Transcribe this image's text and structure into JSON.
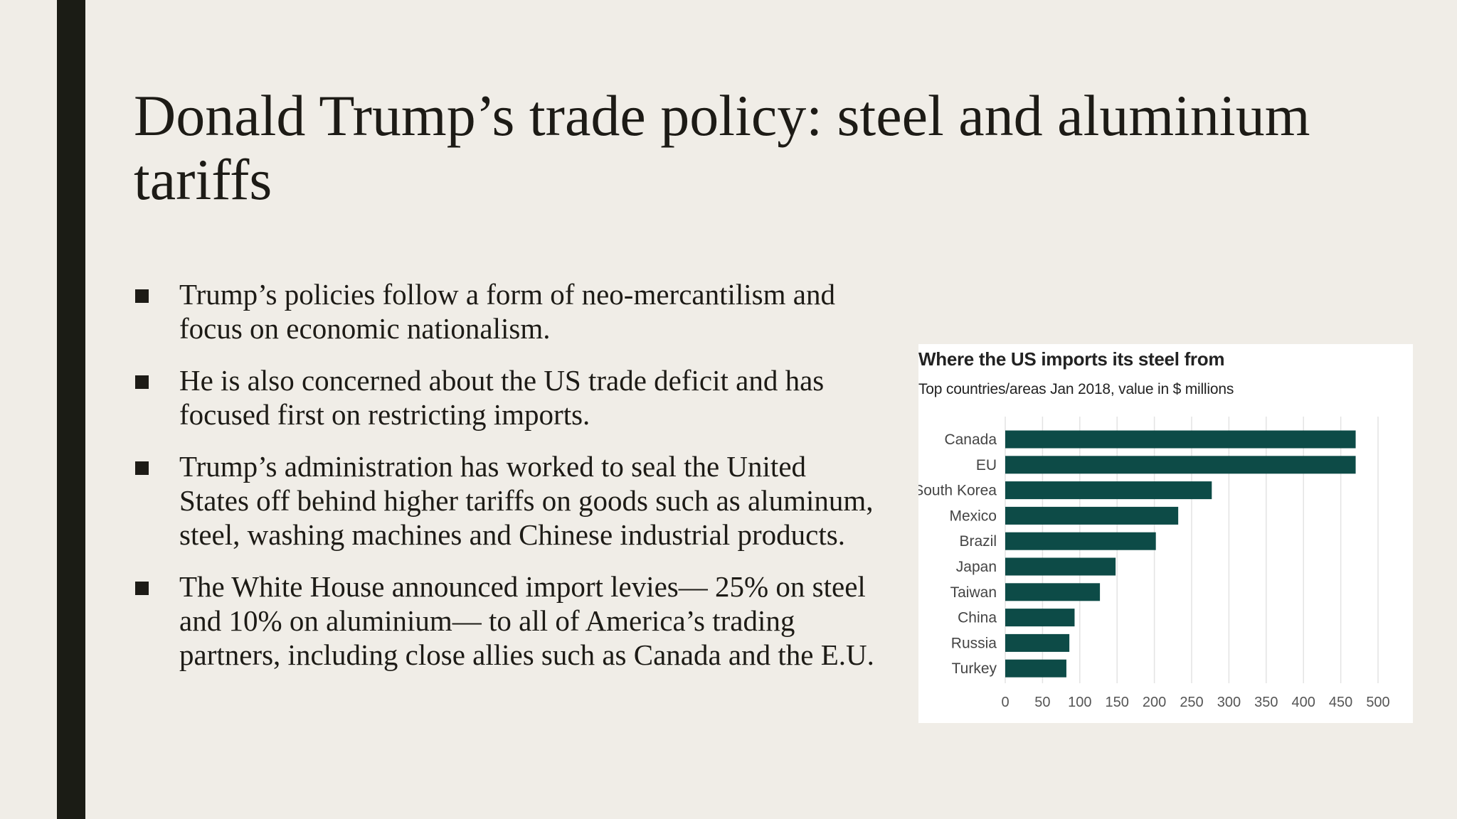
{
  "slide": {
    "title": "Donald Trump’s trade policy: steel and aluminium tariffs",
    "bullets": [
      "Trump’s policies follow a form of neo-mercantilism and focus on economic nationalism.",
      "He is also concerned about the US trade deficit and has focused first on restricting imports.",
      "Trump’s administration has worked to seal the United States off behind higher tariffs on goods such as aluminum, steel, washing machines and Chinese industrial products.",
      "The White House announced import levies— 25% on steel and 10% on aluminium— to all of America’s trading partners, including close allies such as Canada and the E.U."
    ]
  },
  "chart_data": {
    "type": "bar",
    "orientation": "horizontal",
    "title": "Where the US imports its steel from",
    "subtitle": "Top countries/areas Jan 2018, value in $ millions",
    "categories": [
      "Canada",
      "EU",
      "South Korea",
      "Mexico",
      "Brazil",
      "Japan",
      "Taiwan",
      "China",
      "Russia",
      "Turkey"
    ],
    "values": [
      470,
      470,
      277,
      232,
      202,
      148,
      127,
      93,
      86,
      82
    ],
    "xlim": [
      0,
      500
    ],
    "xticks": [
      0,
      50,
      100,
      150,
      200,
      250,
      300,
      350,
      400,
      450,
      500
    ],
    "grid": "vertical",
    "bar_color": "#0d4b47",
    "grid_color": "#e3e3e3"
  }
}
